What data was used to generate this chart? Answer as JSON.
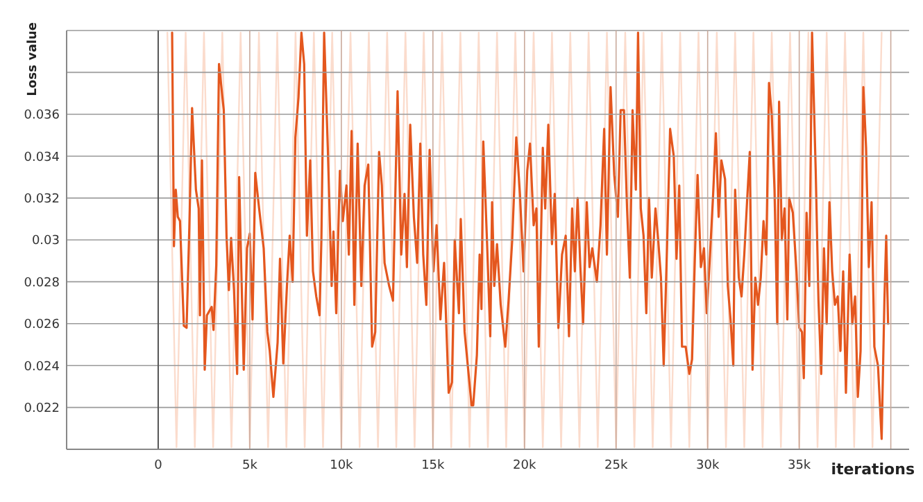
{
  "chart_data": {
    "type": "line",
    "xlabel": "iterations",
    "ylabel": "Loss value",
    "xlim": [
      -5000,
      41000
    ],
    "ylim": [
      0.02,
      0.04
    ],
    "xticks": [
      0,
      {
        "value": 5000,
        "label": "5k"
      },
      {
        "value": 10000,
        "label": "10k"
      },
      {
        "value": 15000,
        "label": "15k"
      },
      {
        "value": 20000,
        "label": "20k"
      },
      {
        "value": 25000,
        "label": "25k"
      },
      {
        "value": 30000,
        "label": "30k"
      },
      {
        "value": 35000,
        "label": "35k"
      },
      {
        "value": 40000,
        "label": null
      }
    ],
    "yticks": [
      {
        "value": 0.02,
        "label": null
      },
      0.022,
      0.024,
      0.026,
      0.028,
      0.03,
      0.032,
      0.034,
      0.036,
      {
        "value": 0.038,
        "label": null
      },
      {
        "value": 0.04,
        "label": null
      }
    ],
    "grid": true,
    "marker": "none",
    "line_style": "solid",
    "series": [
      {
        "color": "#fbdccd",
        "x": [
          500,
          1000,
          1500,
          2000,
          2500,
          3000,
          3500,
          4000,
          4500,
          5000,
          5500,
          6000,
          6500,
          7000,
          7500,
          8000,
          8500,
          9000,
          9500,
          10000,
          10500,
          11000,
          11500,
          12000,
          12500,
          13000,
          13500,
          14000,
          14500,
          15000,
          15500,
          16000,
          16500,
          17000,
          17500,
          18000,
          18500,
          19000,
          19500,
          20000,
          20500,
          21000,
          21500,
          22000,
          22500,
          23000,
          23500,
          24000,
          24500,
          25000,
          25500,
          26000,
          26500,
          27000,
          27500,
          28000,
          28500,
          29000,
          29500,
          30000,
          30500,
          31000,
          31500,
          32000,
          32500,
          33000,
          33500,
          34000,
          34500,
          35000,
          35500,
          36000,
          36500,
          37000,
          37500,
          38000,
          38500,
          39000,
          39500
        ],
        "values": [
          0.0399,
          0.0201,
          0.0399,
          0.0201,
          0.0399,
          0.0201,
          0.0399,
          0.0201,
          0.0399,
          0.0201,
          0.0399,
          0.0201,
          0.0399,
          0.0201,
          0.0399,
          0.0201,
          0.0399,
          0.0201,
          0.0399,
          0.0201,
          0.0399,
          0.0201,
          0.0399,
          0.0201,
          0.0399,
          0.0201,
          0.0399,
          0.0201,
          0.0399,
          0.0201,
          0.0399,
          0.0201,
          0.0399,
          0.0201,
          0.0399,
          0.0201,
          0.0399,
          0.0201,
          0.0399,
          0.0201,
          0.0399,
          0.0201,
          0.0399,
          0.0201,
          0.0399,
          0.0201,
          0.0399,
          0.0201,
          0.0399,
          0.0201,
          0.0399,
          0.0201,
          0.0399,
          0.0201,
          0.0399,
          0.0201,
          0.0399,
          0.0201,
          0.0399,
          0.0201,
          0.0399,
          0.0201,
          0.0399,
          0.0201,
          0.0399,
          0.0201,
          0.0399,
          0.0201,
          0.0399,
          0.0201,
          0.0399,
          0.0201,
          0.0399,
          0.0201,
          0.0399,
          0.0201,
          0.0399,
          0.0201,
          0.0399
        ]
      },
      {
        "color": "#e4571e",
        "x": [
          760,
          860,
          960,
          1070,
          1190,
          1400,
          1550,
          1700,
          1850,
          2060,
          2210,
          2280,
          2390,
          2540,
          2660,
          2920,
          3020,
          3170,
          3320,
          3580,
          3730,
          3860,
          3980,
          4140,
          4310,
          4420,
          4540,
          4670,
          4850,
          5000,
          5150,
          5300,
          5510,
          5760,
          5960,
          6090,
          6290,
          6520,
          6650,
          6830,
          7030,
          7180,
          7340,
          7490,
          7660,
          7820,
          7970,
          8120,
          8300,
          8450,
          8630,
          8810,
          8910,
          9060,
          9260,
          9470,
          9570,
          9720,
          9920,
          10080,
          10280,
          10410,
          10560,
          10710,
          10890,
          11090,
          11270,
          11470,
          11680,
          11850,
          12060,
          12210,
          12360,
          12610,
          12820,
          13070,
          13270,
          13450,
          13580,
          13760,
          13960,
          14140,
          14310,
          14470,
          14640,
          14820,
          15030,
          15200,
          15410,
          15610,
          15860,
          16040,
          16190,
          16420,
          16520,
          16730,
          17110,
          17200,
          17400,
          17550,
          17650,
          17750,
          17950,
          18130,
          18230,
          18350,
          18500,
          18700,
          18950,
          19130,
          19330,
          19550,
          19750,
          19950,
          20150,
          20300,
          20500,
          20650,
          20780,
          21000,
          21130,
          21300,
          21500,
          21650,
          21850,
          22050,
          22250,
          22430,
          22600,
          22750,
          22900,
          23050,
          23200,
          23400,
          23550,
          23700,
          23950,
          24150,
          24350,
          24500,
          24700,
          24900,
          25100,
          25250,
          25430,
          25600,
          25750,
          25900,
          26080,
          26200,
          26350,
          26500,
          26650,
          26800,
          26950,
          27150,
          27300,
          27450,
          27600,
          27780,
          27950,
          28150,
          28300,
          28450,
          28600,
          28800,
          29000,
          29150,
          29300,
          29450,
          29630,
          29800,
          29950,
          30130,
          30300,
          30450,
          30600,
          30750,
          30950,
          31100,
          31250,
          31400,
          31500,
          31700,
          31850,
          32000,
          32150,
          32300,
          32450,
          32600,
          32750,
          32900,
          33050,
          33200,
          33350,
          33500,
          33650,
          33800,
          33900,
          34050,
          34200,
          34350,
          34450,
          34650,
          34850,
          35000,
          35150,
          35250,
          35400,
          35550,
          35700,
          35900,
          36050,
          36200,
          36350,
          36500,
          36650,
          36800,
          36950,
          37100,
          37250,
          37400,
          37550,
          37750,
          37900,
          38050,
          38200,
          38350,
          38500,
          38650,
          38800,
          38950,
          39100,
          39300,
          39500,
          39650,
          39750,
          39850
        ],
        "values": [
          0.0399,
          0.0297,
          0.0324,
          0.0311,
          0.0309,
          0.0259,
          0.0258,
          0.0306,
          0.0363,
          0.0324,
          0.0315,
          0.0264,
          0.0338,
          0.0238,
          0.0264,
          0.0268,
          0.0257,
          0.0288,
          0.0384,
          0.0362,
          0.0302,
          0.0276,
          0.0301,
          0.0276,
          0.0236,
          0.033,
          0.0285,
          0.0238,
          0.0296,
          0.0303,
          0.0262,
          0.0332,
          0.0315,
          0.0296,
          0.0256,
          0.0247,
          0.0225,
          0.0251,
          0.0291,
          0.0241,
          0.0278,
          0.0302,
          0.028,
          0.0349,
          0.0368,
          0.0399,
          0.0384,
          0.0302,
          0.0338,
          0.0285,
          0.0273,
          0.0264,
          0.03,
          0.0399,
          0.0344,
          0.0278,
          0.0304,
          0.0265,
          0.0333,
          0.0309,
          0.0326,
          0.0293,
          0.0352,
          0.0269,
          0.0346,
          0.0278,
          0.0326,
          0.0336,
          0.0249,
          0.0256,
          0.0342,
          0.0326,
          0.0289,
          0.0278,
          0.0271,
          0.0371,
          0.0293,
          0.0322,
          0.0287,
          0.0355,
          0.0311,
          0.0289,
          0.0346,
          0.0293,
          0.0269,
          0.0343,
          0.0285,
          0.0307,
          0.0262,
          0.0289,
          0.0227,
          0.0232,
          0.03,
          0.0265,
          0.031,
          0.0256,
          0.0221,
          0.0221,
          0.0245,
          0.0293,
          0.0267,
          0.0347,
          0.03,
          0.0254,
          0.0318,
          0.0278,
          0.0298,
          0.0269,
          0.0249,
          0.0271,
          0.03,
          0.0349,
          0.0322,
          0.0285,
          0.0333,
          0.0346,
          0.0307,
          0.0315,
          0.0249,
          0.0344,
          0.0315,
          0.0355,
          0.0298,
          0.0322,
          0.0258,
          0.0293,
          0.0302,
          0.0254,
          0.0315,
          0.0285,
          0.032,
          0.0287,
          0.026,
          0.0318,
          0.0287,
          0.0296,
          0.028,
          0.0307,
          0.0353,
          0.0293,
          0.0373,
          0.0331,
          0.0311,
          0.0362,
          0.0362,
          0.0315,
          0.0282,
          0.0362,
          0.0324,
          0.0399,
          0.0315,
          0.0302,
          0.0265,
          0.032,
          0.0282,
          0.0315,
          0.03,
          0.0282,
          0.024,
          0.0296,
          0.0353,
          0.034,
          0.0291,
          0.0326,
          0.0249,
          0.0249,
          0.0236,
          0.0243,
          0.0291,
          0.0331,
          0.0287,
          0.0296,
          0.0265,
          0.0293,
          0.0322,
          0.0351,
          0.0311,
          0.0338,
          0.0329,
          0.0278,
          0.0262,
          0.024,
          0.0324,
          0.0282,
          0.0273,
          0.0293,
          0.0318,
          0.0342,
          0.0238,
          0.0282,
          0.0269,
          0.0282,
          0.0309,
          0.0293,
          0.0375,
          0.036,
          0.0324,
          0.026,
          0.0366,
          0.03,
          0.0315,
          0.0262,
          0.032,
          0.0313,
          0.0285,
          0.0258,
          0.0256,
          0.0234,
          0.0313,
          0.0278,
          0.0399,
          0.0333,
          0.0271,
          0.0236,
          0.0296,
          0.026,
          0.0318,
          0.0285,
          0.0269,
          0.0273,
          0.0247,
          0.0285,
          0.0227,
          0.0293,
          0.026,
          0.0273,
          0.0225,
          0.0247,
          0.0373,
          0.0344,
          0.0287,
          0.0318,
          0.0249,
          0.024,
          0.0205,
          0.0271,
          0.0302,
          0.026
        ]
      }
    ]
  }
}
